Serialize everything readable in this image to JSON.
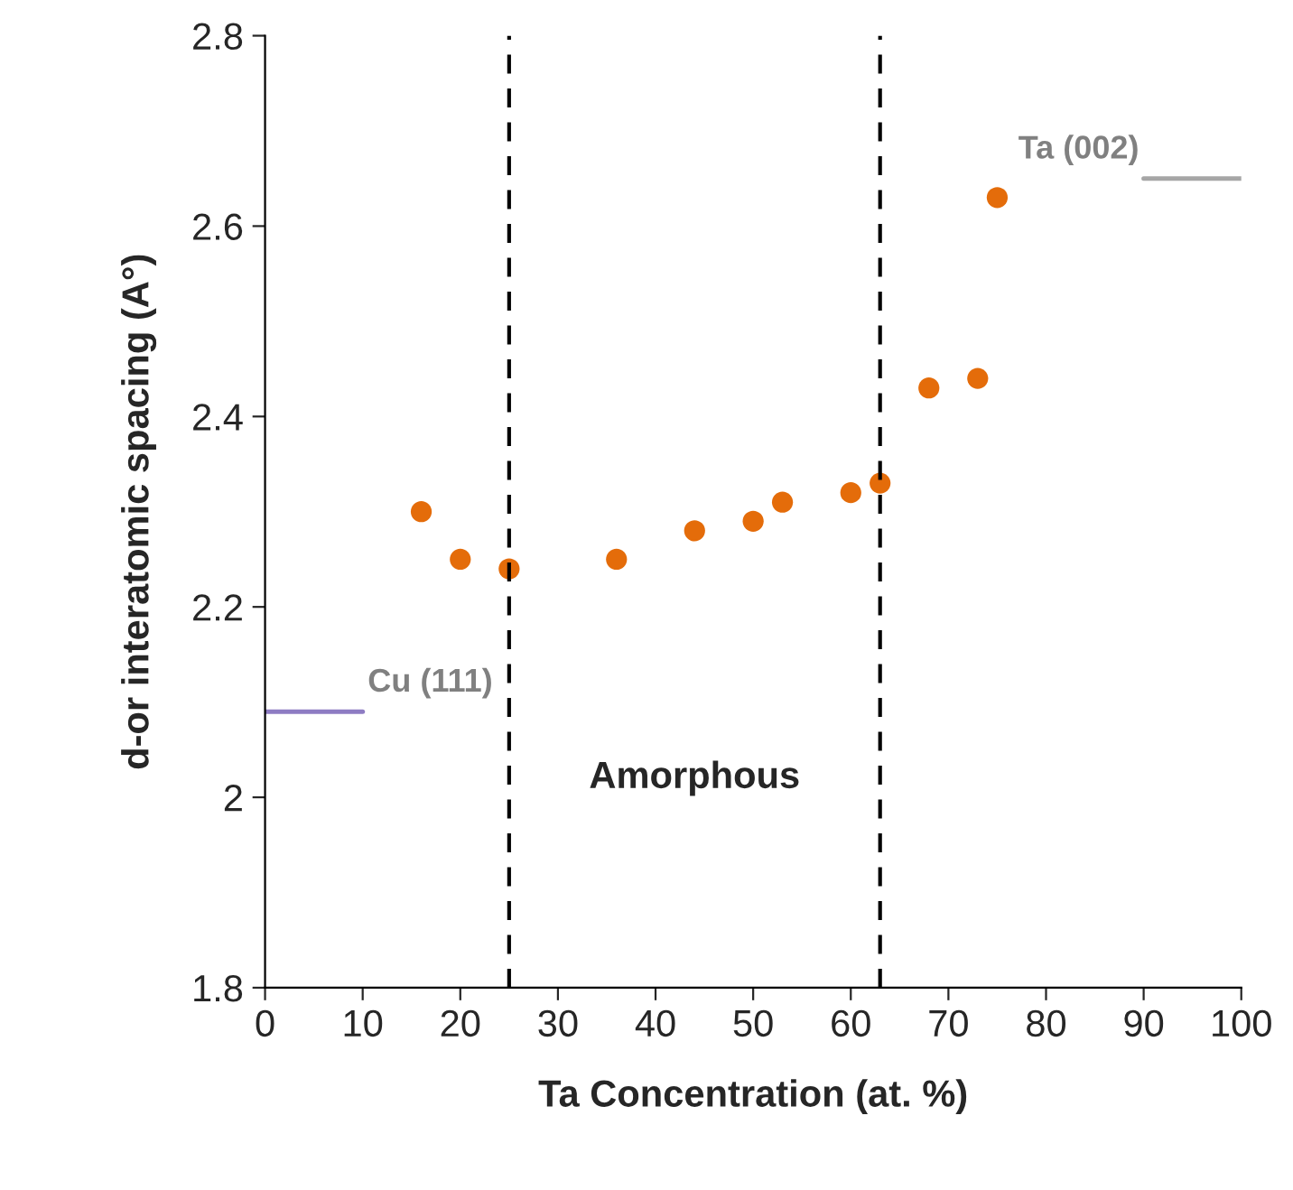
{
  "chart_data": {
    "type": "scatter",
    "xlabel": "Ta Concentration (at. %)",
    "ylabel": "d-or interatomic spacing (A°)",
    "xlim": [
      0,
      100
    ],
    "xticks": [
      0,
      10,
      20,
      30,
      40,
      50,
      60,
      70,
      80,
      90,
      100
    ],
    "ylim": [
      1.8,
      2.8
    ],
    "yticks": [
      1.8,
      2,
      2.2,
      2.4,
      2.6,
      2.8
    ],
    "grid": false,
    "legend": false,
    "marker": "circle",
    "series": [
      {
        "x": [
          16,
          20,
          25,
          36,
          44,
          50,
          53,
          60,
          63,
          68,
          73,
          75
        ],
        "values": [
          2.3,
          2.25,
          2.24,
          2.25,
          2.28,
          2.29,
          2.31,
          2.32,
          2.33,
          2.43,
          2.44,
          2.63
        ],
        "color": "#e46c0a"
      },
      {
        "type": "line",
        "name": "Cu (111)",
        "x": [
          0,
          10
        ],
        "values": [
          2.09,
          2.09
        ],
        "color": "#8e7cc3",
        "marker": "none"
      },
      {
        "type": "line",
        "name": "Ta (002)",
        "x": [
          90,
          100
        ],
        "values": [
          2.65,
          2.65
        ],
        "color": "#a6a6a6",
        "marker": "none"
      }
    ],
    "ref_lines": [
      {
        "axis": "x",
        "value": 25,
        "color": "#000000",
        "line_style": "dashed"
      },
      {
        "axis": "x",
        "value": 63,
        "color": "#000000",
        "line_style": "dashed"
      }
    ],
    "annotations": [
      "Amorphous"
    ]
  }
}
